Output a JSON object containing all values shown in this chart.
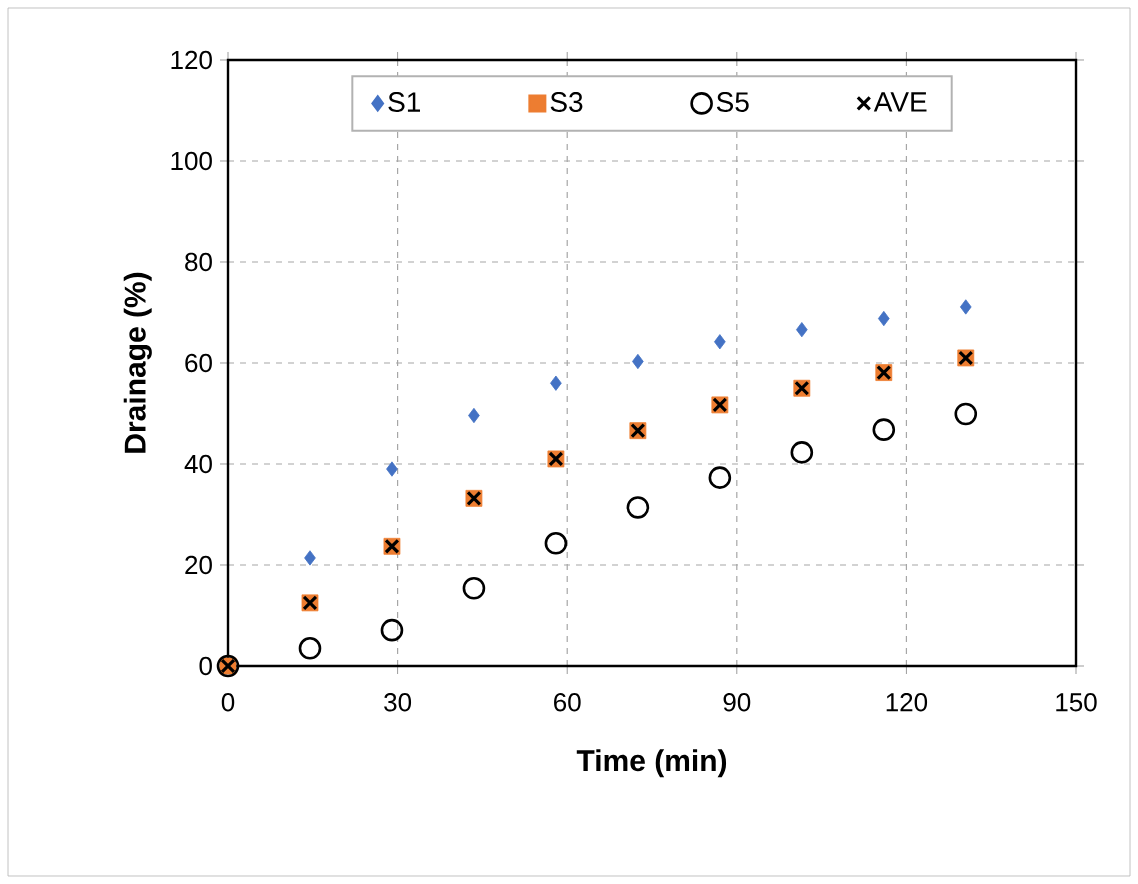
{
  "chart_data": {
    "type": "scatter",
    "xlabel": "Time (min)",
    "ylabel": "Drainage (%)",
    "x": [
      0,
      14.5,
      29,
      43.5,
      58,
      72.5,
      87,
      101.5,
      116,
      130.5
    ],
    "series": [
      {
        "name": "S1",
        "color": "#4472c4",
        "marker": "diamond",
        "values": [
          null,
          21.4,
          39.0,
          49.6,
          56.0,
          60.3,
          64.2,
          66.6,
          68.8,
          71.1
        ]
      },
      {
        "name": "S3",
        "color": "#ed7d31",
        "marker": "square",
        "values": [
          0,
          12.5,
          23.7,
          33.2,
          41.0,
          46.6,
          51.7,
          55.0,
          58.1,
          61.0
        ]
      },
      {
        "name": "S5",
        "color": "#000000",
        "marker": "circle",
        "values": [
          0,
          3.5,
          7.1,
          15.4,
          24.3,
          31.4,
          37.3,
          42.3,
          46.8,
          49.9
        ]
      },
      {
        "name": "AVE",
        "color": "#000000",
        "marker": "cross",
        "values": [
          0,
          12.5,
          23.7,
          33.2,
          41.0,
          46.6,
          51.7,
          55.0,
          58.1,
          61.0
        ]
      }
    ],
    "xlim": [
      0,
      150
    ],
    "xticks": [
      0,
      30,
      60,
      90,
      120,
      150
    ],
    "ylim": [
      0,
      120
    ],
    "yticks": [
      0,
      20,
      40,
      60,
      80,
      100,
      120
    ],
    "grid": true,
    "legend": "top"
  }
}
